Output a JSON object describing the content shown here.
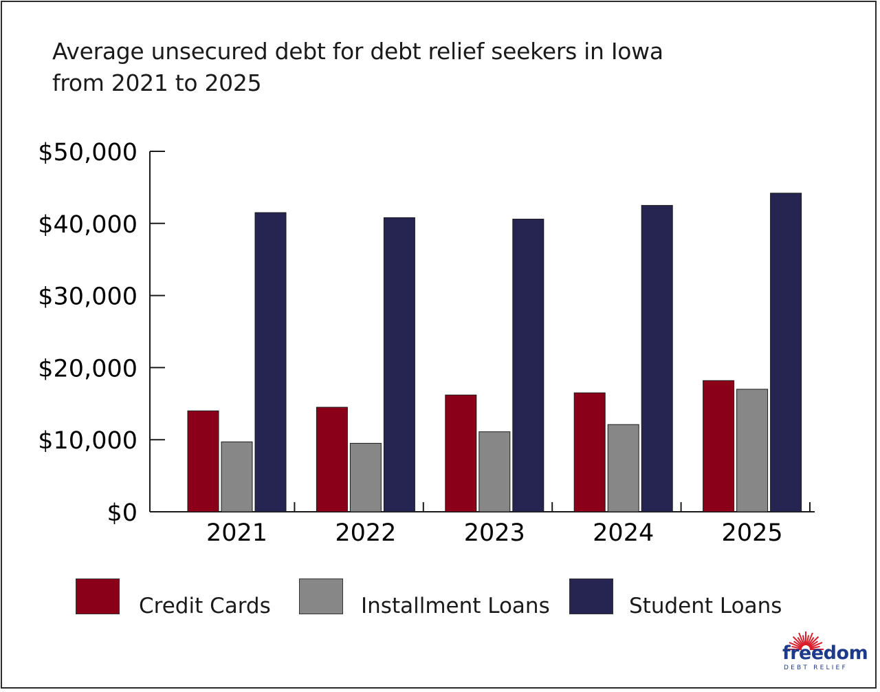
{
  "chart_data": {
    "type": "bar",
    "title_lines": [
      "Average unsecured debt for debt relief seekers in Iowa",
      "from 2021 to 2025"
    ],
    "categories": [
      "2021",
      "2022",
      "2023",
      "2024",
      "2025"
    ],
    "series": [
      {
        "name": "Credit Cards",
        "color": "#8b0018",
        "values": [
          14000,
          14500,
          16200,
          16500,
          18200
        ]
      },
      {
        "name": "Installment Loans",
        "color": "#878787",
        "values": [
          9700,
          9500,
          11100,
          12100,
          17000
        ]
      },
      {
        "name": "Student Loans",
        "color": "#262551",
        "values": [
          41500,
          40800,
          40600,
          42500,
          44200
        ]
      }
    ],
    "ylim": [
      0,
      50000
    ],
    "yticks": [
      0,
      10000,
      20000,
      30000,
      40000,
      50000
    ],
    "ytick_labels": [
      "$0",
      "$10,000",
      "$20,000",
      "$30,000",
      "$40,000",
      "$50,000"
    ],
    "xlabel": "",
    "ylabel": "",
    "grid": false,
    "legend_position": "bottom"
  },
  "logo": {
    "word": "freedom",
    "sub": "DEBT RELIEF",
    "color": "#1e3a8a",
    "ray_color": "#d81e2a"
  }
}
